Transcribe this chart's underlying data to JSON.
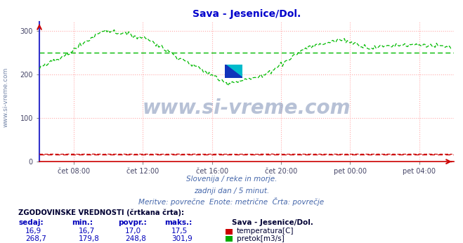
{
  "title": "Sava - Jesenice/Dol.",
  "title_color": "#0000cc",
  "background_color": "#ffffff",
  "plot_bg_color": "#ffffff",
  "grid_color": "#ffaaaa",
  "xlabel_ticks": [
    "čet 08:00",
    "čet 12:00",
    "čet 16:00",
    "čet 20:00",
    "pet 00:00",
    "pet 04:00"
  ],
  "xlabel_tick_fracs": [
    0.0833,
    0.25,
    0.4167,
    0.5833,
    0.75,
    0.9167
  ],
  "ylabel_ticks": [
    0,
    100,
    200,
    300
  ],
  "ylim": [
    0,
    320
  ],
  "xlim_max": 288,
  "subtitle_lines": [
    "Slovenija / reke in morje.",
    "zadnji dan / 5 minut.",
    "Meritve: povrečne  Enote: metrične  Črta: povrečje"
  ],
  "subtitle_color": "#4466aa",
  "watermark_text": "www.si-vreme.com",
  "side_label": "www.si-vreme.com",
  "legend_title": "Sava - Jesenice/Dol.",
  "legend_header": "ZGODOVINSKE VREDNOSTI (črtkana črta):",
  "legend_col_headers": [
    "sedaj:",
    "min.:",
    "povpr.:",
    "maks.:"
  ],
  "legend_temp_vals": [
    "16,9",
    "16,7",
    "17,0",
    "17,5"
  ],
  "legend_pretok_vals": [
    "268,7",
    "179,8",
    "248,8",
    "301,9"
  ],
  "legend_temp_label": "temperatura[C]",
  "legend_pretok_label": "pretok[m3/s]",
  "temp_color": "#cc0000",
  "pretok_color": "#00bb00",
  "avg_pretok": 248.8,
  "avg_temp": 17.0,
  "left_spine_color": "#3333cc",
  "bottom_spine_color": "#cc0000",
  "right_spine_color": "#ccccdd",
  "top_bg_color": "#eeeef5"
}
